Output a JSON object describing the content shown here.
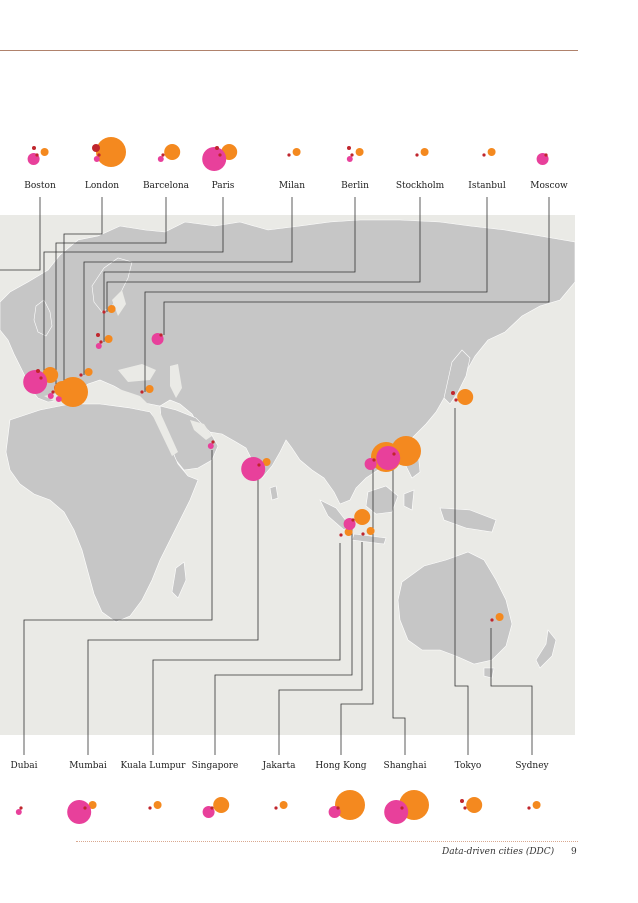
{
  "colors": {
    "pink": "#e8409b",
    "orange": "#f4891f",
    "red": "#c0262d",
    "land": "#c6c6c6",
    "ocean": "#eaeae6",
    "line": "#333333"
  },
  "top_cities": [
    {
      "name": "Boston",
      "sizes": {
        "pink": 2,
        "orange": 1,
        "red": 1
      }
    },
    {
      "name": "London",
      "sizes": {
        "pink": 1,
        "orange": 3,
        "red": 2
      }
    },
    {
      "name": "Barcelona",
      "sizes": {
        "pink": 1,
        "orange": 2,
        "red": 0
      }
    },
    {
      "name": "Paris",
      "sizes": {
        "pink": 3,
        "orange": 2,
        "red": 1
      }
    },
    {
      "name": "Milan",
      "sizes": {
        "pink": 0,
        "orange": 1,
        "red": 0
      }
    },
    {
      "name": "Berlin",
      "sizes": {
        "pink": 1,
        "orange": 1,
        "red": 1
      }
    },
    {
      "name": "Stockholm",
      "sizes": {
        "pink": 0,
        "orange": 1,
        "red": 0
      }
    },
    {
      "name": "Istanbul",
      "sizes": {
        "pink": 0,
        "orange": 1,
        "red": 0
      }
    },
    {
      "name": "Moscow",
      "sizes": {
        "pink": 2,
        "orange": 0,
        "red": 0
      }
    }
  ],
  "bottom_cities": [
    {
      "name": "Dubai",
      "sizes": {
        "pink": 1,
        "orange": 0,
        "red": 0
      }
    },
    {
      "name": "Mumbai",
      "sizes": {
        "pink": 3,
        "orange": 1,
        "red": 0
      }
    },
    {
      "name": "Kuala Lumpur",
      "sizes": {
        "pink": 0,
        "orange": 1,
        "red": 0
      }
    },
    {
      "name": "Singapore",
      "sizes": {
        "pink": 2,
        "orange": 2,
        "red": 0
      }
    },
    {
      "name": "Jakarta",
      "sizes": {
        "pink": 0,
        "orange": 1,
        "red": 0
      }
    },
    {
      "name": "Hong Kong",
      "sizes": {
        "pink": 2,
        "orange": 3,
        "red": 0
      }
    },
    {
      "name": "Shanghai",
      "sizes": {
        "pink": 3,
        "orange": 3,
        "red": 0
      }
    },
    {
      "name": "Tokyo",
      "sizes": {
        "pink": 0,
        "orange": 2,
        "red": 1
      }
    },
    {
      "name": "Sydney",
      "sizes": {
        "pink": 0,
        "orange": 1,
        "red": 0
      }
    }
  ],
  "footer": {
    "title": "Data-driven cities (DDC)",
    "page": "9"
  }
}
